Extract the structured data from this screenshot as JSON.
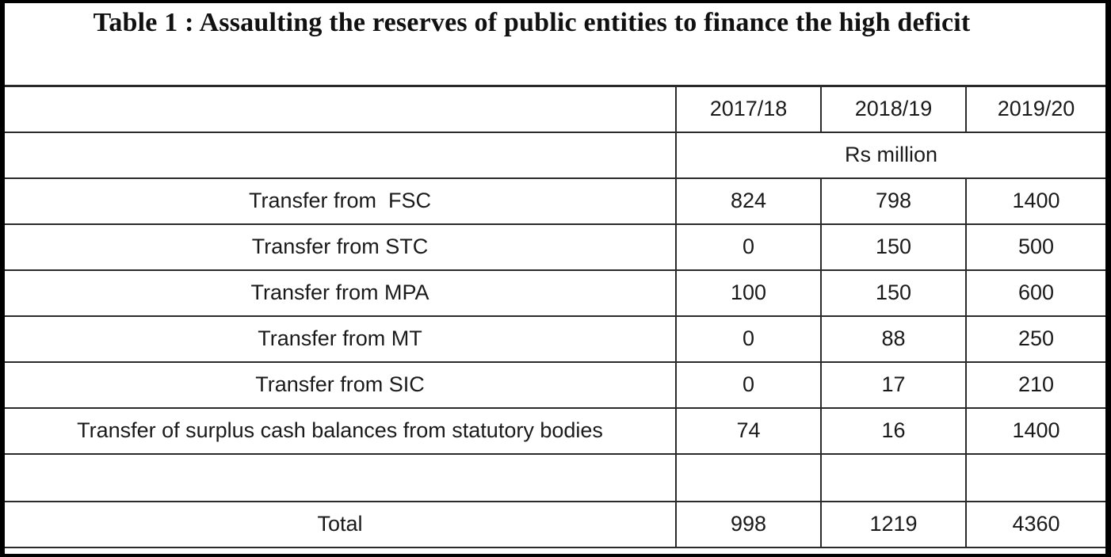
{
  "title": "Table 1 : Assaulting the reserves of public entities to finance the high deficit",
  "columns": [
    "",
    "2017/18",
    "2018/19",
    "2019/20"
  ],
  "unit": "Rs million",
  "rows": [
    {
      "label": "Transfer from  FSC",
      "values": [
        "824",
        "798",
        "1400"
      ]
    },
    {
      "label": "Transfer from STC",
      "values": [
        "0",
        "150",
        "500"
      ]
    },
    {
      "label": "Transfer from MPA",
      "values": [
        "100",
        "150",
        "600"
      ]
    },
    {
      "label": "Transfer from MT",
      "values": [
        "0",
        "88",
        "250"
      ]
    },
    {
      "label": "Transfer from SIC",
      "values": [
        "0",
        "17",
        "210"
      ]
    },
    {
      "label": "Transfer of surplus cash balances from statutory bodies",
      "values": [
        "74",
        "16",
        "1400"
      ]
    }
  ],
  "total": {
    "label": "Total",
    "values": [
      "998",
      "1219",
      "4360"
    ]
  }
}
